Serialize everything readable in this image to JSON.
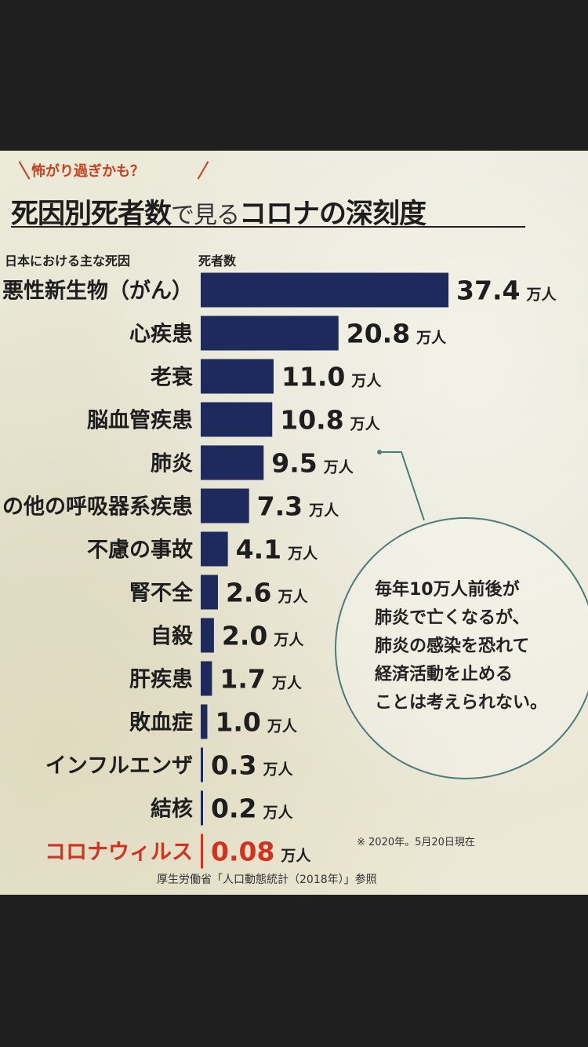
{
  "kicker": "怖がり過ぎかも？",
  "headline": {
    "part1": "死因別死者数",
    "part2": "で見る",
    "part3": "コロナの深刻度"
  },
  "chart_data": {
    "type": "bar",
    "orientation": "horizontal",
    "xlabel": "日本における主な死因",
    "ylabel": "死者数",
    "unit": "万人",
    "categories": [
      "悪性新生物（がん）",
      "心疾患",
      "老衰",
      "脳血管疾患",
      "肺炎",
      "の他の呼吸器系疾患",
      "不慮の事故",
      "腎不全",
      "自殺",
      "肝疾患",
      "敗血症",
      "インフルエンザ",
      "結核",
      "コロナウィルス"
    ],
    "values": [
      37.4,
      20.8,
      11.0,
      10.8,
      9.5,
      7.3,
      4.1,
      2.6,
      2.0,
      1.7,
      1.0,
      0.3,
      0.2,
      0.08
    ],
    "value_labels": [
      "37.4",
      "20.8",
      "11.0",
      "10.8",
      "9.5",
      "7.3",
      "4.1",
      "2.6",
      "2.0",
      "1.7",
      "1.0",
      "0.3",
      "0.2",
      "0.08"
    ],
    "highlight_index": 13,
    "bar_color": "#1f2a5c",
    "highlight_color": "#d2321e",
    "grid": false
  },
  "callout": {
    "lines": [
      "毎年10万人前後が",
      "肺炎で亡くなるが、",
      "肺炎の感染を恐れて",
      "経済活動を止める",
      "ことは考えられない。"
    ]
  },
  "note": "※ 2020年。5月20日現在",
  "source": "厚生労働省「人口動態統計（2018年）」参照",
  "colors": {
    "accent": "#c8401f",
    "circle": "#4c7c7a",
    "background": "#1f1f1f"
  }
}
